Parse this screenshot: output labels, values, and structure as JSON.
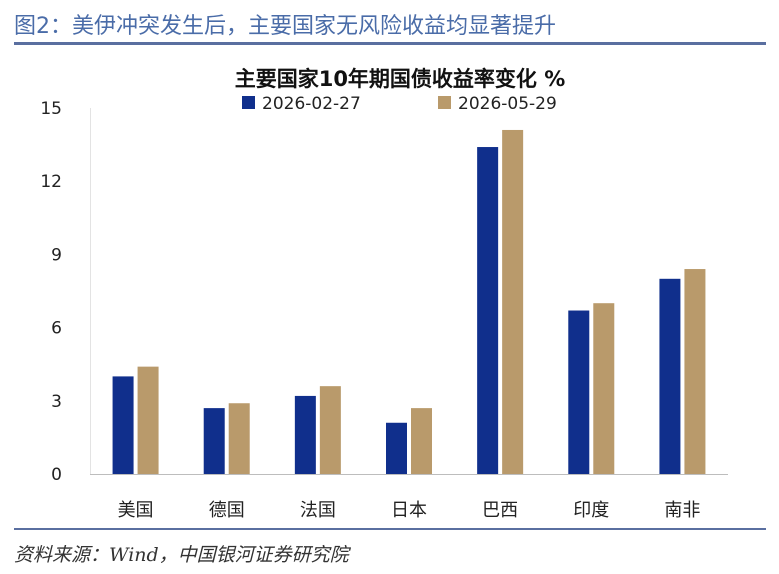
{
  "figure_title": "图2：美伊冲突发生后，主要国家无风险收益均显著提升",
  "source": "资料来源：Wind，中国银河证券研究院",
  "colors": {
    "series1": "#102f8c",
    "series2": "#b99a6b",
    "rule": "#5a6fa0",
    "figure_title": "#4a6ca8"
  },
  "chart_data": {
    "type": "bar",
    "title": "主要国家10年期国债收益率变化 %",
    "categories": [
      "美国",
      "德国",
      "法国",
      "日本",
      "巴西",
      "印度",
      "南非"
    ],
    "series": [
      {
        "name": "2026-02-27",
        "values": [
          4.0,
          2.7,
          3.2,
          2.1,
          13.4,
          6.7,
          8.0
        ]
      },
      {
        "name": "2026-05-29",
        "values": [
          4.4,
          2.9,
          3.6,
          2.7,
          14.1,
          7.0,
          8.4
        ]
      }
    ],
    "yticks": [
      0,
      3,
      6,
      9,
      12,
      15
    ],
    "ylim": [
      0,
      15
    ],
    "legend_position": "top",
    "grid": false
  }
}
